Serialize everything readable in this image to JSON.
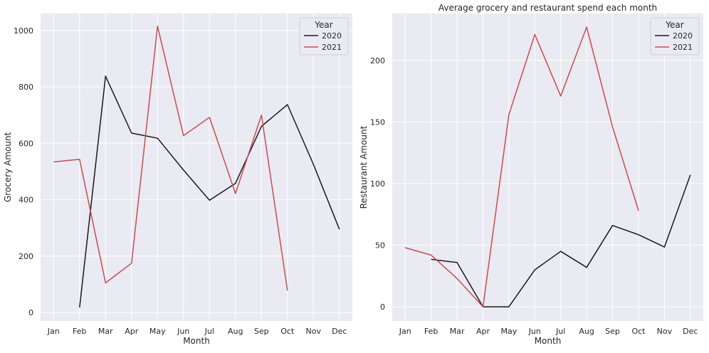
{
  "chart_data": [
    {
      "type": "line",
      "title": "",
      "xlabel": "Month",
      "ylabel": "Grocery Amount",
      "categories": [
        "Jan",
        "Feb",
        "Mar",
        "Apr",
        "May",
        "Jun",
        "Jul",
        "Aug",
        "Sep",
        "Oct",
        "Nov",
        "Dec"
      ],
      "ylim": [
        -30,
        1060
      ],
      "yticks": [
        0,
        200,
        400,
        600,
        800,
        1000
      ],
      "grid": true,
      "legend": {
        "title": "Year",
        "placement": "top-right"
      },
      "series": [
        {
          "name": "2020",
          "color": "#1a1a1a",
          "values": [
            null,
            18,
            838,
            636,
            618,
            505,
            398,
            458,
            660,
            737,
            525,
            295
          ]
        },
        {
          "name": "2021",
          "color": "#c44e52",
          "values": [
            534,
            543,
            105,
            175,
            1015,
            627,
            692,
            422,
            700,
            78,
            null,
            null
          ]
        }
      ]
    },
    {
      "type": "line",
      "title": "Average grocery and restaurant spend each month",
      "xlabel": "Month",
      "ylabel": "Restaurant Amount",
      "categories": [
        "Jan",
        "Feb",
        "Mar",
        "Apr",
        "May",
        "Jun",
        "Jul",
        "Aug",
        "Sep",
        "Oct",
        "Nov",
        "Dec"
      ],
      "ylim": [
        -11.5,
        238
      ],
      "yticks": [
        0,
        50,
        100,
        150,
        200
      ],
      "grid": true,
      "legend": {
        "title": "Year",
        "placement": "top-right"
      },
      "series": [
        {
          "name": "2020",
          "color": "#1a1a1a",
          "values": [
            null,
            38.5,
            36,
            0,
            0,
            30,
            45,
            32,
            66,
            58.5,
            48.5,
            107
          ]
        },
        {
          "name": "2021",
          "color": "#c44e52",
          "values": [
            48,
            42,
            23,
            0,
            156,
            221,
            171,
            227,
            146,
            78,
            null,
            null
          ]
        }
      ]
    }
  ]
}
